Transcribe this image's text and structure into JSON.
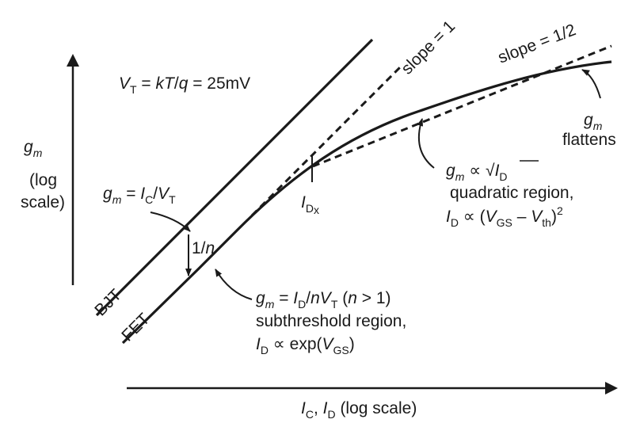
{
  "y_axis": {
    "symbol": "g",
    "sub": "m",
    "line2": "(log",
    "line3": "scale)"
  },
  "x_axis": {
    "label_i": "I",
    "label_c_sub": "C",
    "label_sep": ", ",
    "label_i2": "I",
    "label_d_sub": "D",
    "label_rest": " (log scale)"
  },
  "vt_equation": {
    "v": "V",
    "t_sub": "T",
    "rest1": " = ",
    "k": "kT",
    "slash": "/",
    "q": "q",
    "rest2": " = 25mV"
  },
  "slope_1": "slope = 1",
  "slope_half": "slope = 1/2",
  "bjt_label": "BJT",
  "fet_label": "FET",
  "one_over_n": {
    "one": "1/",
    "n": "n"
  },
  "gm_bjt": {
    "g": "g",
    "m": "m",
    "eq": " = ",
    "i": "I",
    "c": "C",
    "slash": "/",
    "v": "V",
    "t": "T"
  },
  "idx_label": {
    "i": "I",
    "d": "D",
    "x": "x"
  },
  "gm_flattens": {
    "g": "g",
    "m": "m",
    "text": "flattens"
  },
  "quadratic": {
    "g": "g",
    "m": "m",
    "prop": " ∝ ",
    "i": "I",
    "d": "D",
    "line2": "quadratic region,",
    "l3_i": "I",
    "l3_d": "D",
    "l3_prop": " ∝ (",
    "l3_v": "V",
    "l3_gs": "GS",
    "l3_minus": " – ",
    "l3_v2": "V",
    "l3_th": "th",
    "l3_close": ")",
    "l3_sq": "2"
  },
  "subthreshold": {
    "g": "g",
    "m": "m",
    "eq": " = ",
    "i": "I",
    "d": "D",
    "slash": "/",
    "n": "n",
    "v": "V",
    "t": "T",
    "cond_open": "  (",
    "cond_n": "n",
    "cond_rest": " > 1)",
    "line2": "subthreshold region,",
    "l3_i": "I",
    "l3_d": "D",
    "l3_prop": " ∝ exp(",
    "l3_v": "V",
    "l3_gs": "GS",
    "l3_close": ")"
  }
}
